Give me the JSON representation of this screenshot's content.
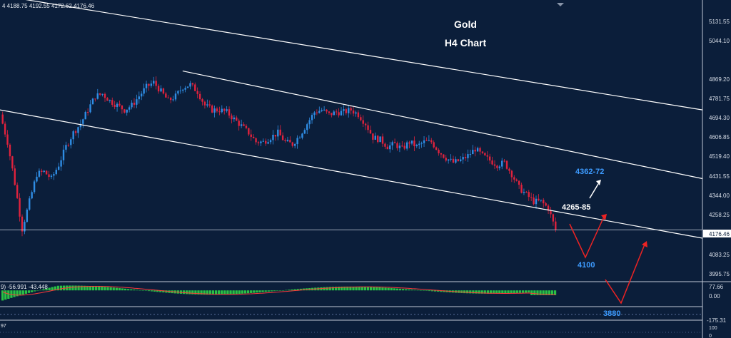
{
  "header": {
    "ohlc": "4  4188.75 4192.55 4172.62 4176.46"
  },
  "title": {
    "line1": "Gold",
    "line2": "H4 Chart"
  },
  "colors": {
    "background": "#0b1e3a",
    "bull": "#2f8de4",
    "bear": "#e0223d",
    "trend_line": "#ffffff",
    "macd_hist": "#29c145",
    "macd_signal": "#ff3a3a",
    "label_blue": "#3d9bff",
    "label_white": "#ffffff",
    "arrow_red": "#ee2323"
  },
  "price_axis": {
    "labels": [
      "5131.55",
      "5044.10",
      "4869.20",
      "4781.75",
      "4694.30",
      "4606.85",
      "4519.40",
      "4431.55",
      "4344.00",
      "4258.25",
      "4176.46",
      "4083.25",
      "3995.75"
    ],
    "current_price": "4176.46"
  },
  "indicator": {
    "readout": "9) -56.991 -43.448",
    "axis_labels": [
      "77.66",
      "0.00",
      "-175.31"
    ],
    "lower_axis_labels": [
      "100",
      "0"
    ],
    "lower_readout": "97"
  },
  "annotations": {
    "target_up": "4362-72",
    "resistance": "4265-85",
    "support1": "4100",
    "support2": "3880"
  },
  "chart_data": {
    "type": "candlestick",
    "title": "Gold H4 Chart",
    "ylim": [
      3950,
      5180
    ],
    "last_price": 4176.46,
    "price_path": [
      4680,
      4560,
      4380,
      4180,
      4300,
      4420,
      4430,
      4400,
      4460,
      4540,
      4600,
      4640,
      4700,
      4760,
      4770,
      4740,
      4720,
      4700,
      4720,
      4760,
      4800,
      4820,
      4780,
      4740,
      4760,
      4800,
      4810,
      4780,
      4720,
      4700,
      4700,
      4690,
      4660,
      4630,
      4600,
      4560,
      4560,
      4580,
      4600,
      4560,
      4550,
      4590,
      4640,
      4690,
      4700,
      4680,
      4690,
      4690,
      4700,
      4680,
      4640,
      4580,
      4570,
      4540,
      4550,
      4530,
      4560,
      4540,
      4560,
      4560,
      4520,
      4490,
      4470,
      4480,
      4500,
      4530,
      4500,
      4480,
      4460,
      4470,
      4420,
      4360,
      4330,
      4300,
      4300,
      4270,
      4176
    ],
    "channels": [
      {
        "name": "upper",
        "from": [
          0.0,
          5200
        ],
        "to": [
          1.0,
          4700
        ]
      },
      {
        "name": "middle",
        "from": [
          0.26,
          4870
        ],
        "to": [
          1.0,
          4400
        ]
      },
      {
        "name": "lower",
        "from": [
          0.0,
          4700
        ],
        "to": [
          1.0,
          4140
        ]
      }
    ],
    "macd": {
      "hist_ylim": [
        -175.31,
        77.66
      ],
      "hist_last": -56.991,
      "signal_last": -43.448
    },
    "annotations": [
      {
        "text": "4362-72",
        "value": 4367
      },
      {
        "text": "4265-85",
        "value": 4275
      },
      {
        "text": "4100",
        "value": 4100
      },
      {
        "text": "3880",
        "value": 3880
      }
    ]
  }
}
